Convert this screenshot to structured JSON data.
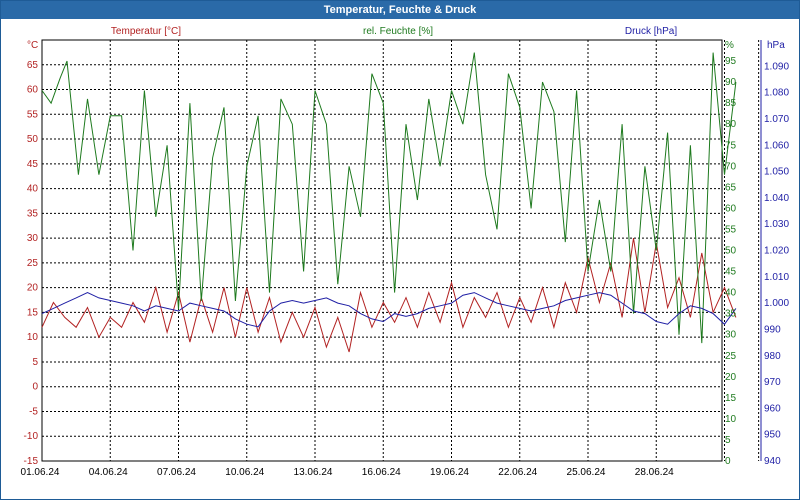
{
  "window_title": "Temperatur, Feuchte & Druck",
  "colors": {
    "temperature": "#b22222",
    "humidity": "#1e7a1e",
    "pressure": "#1f1fa5",
    "grid": "#000000",
    "titlebar": "#2a6aa8"
  },
  "chart_data": {
    "type": "line",
    "title": "Temperatur, Feuchte & Druck",
    "grid": true,
    "x_ticks": [
      "01.06.24",
      "04.06.24",
      "07.06.24",
      "10.06.24",
      "13.06.24",
      "16.06.24",
      "19.06.24",
      "22.06.24",
      "25.06.24",
      "28.06.24"
    ],
    "x_range": [
      "01.06.24",
      "02.07.24"
    ],
    "axes": {
      "left": {
        "unit": "°C",
        "range": [
          -15,
          70
        ],
        "ticks": [
          "-15",
          "-10",
          "-5",
          "0",
          "5",
          "10",
          "15",
          "20",
          "25",
          "30",
          "35",
          "40",
          "45",
          "50",
          "55",
          "60",
          "65"
        ]
      },
      "mid": {
        "unit": "%",
        "range": [
          0,
          100
        ],
        "ticks": [
          "0",
          "5",
          "10",
          "15",
          "20",
          "25",
          "30",
          "35",
          "40",
          "45",
          "50",
          "55",
          "60",
          "65",
          "70",
          "75",
          "80",
          "85",
          "90",
          "95"
        ]
      },
      "right": {
        "unit": "hPa",
        "range": [
          940,
          1100
        ],
        "ticks": [
          "940",
          "950",
          "960",
          "970",
          "980",
          "990",
          "1.000",
          "1.010",
          "1.020",
          "1.030",
          "1.040",
          "1.050",
          "1.060",
          "1.070",
          "1.080",
          "1.090"
        ]
      }
    },
    "series": [
      {
        "name": "Temperatur [°C]",
        "axis": "left",
        "day_points": [
          [
            0,
            12
          ],
          [
            0.5,
            17
          ],
          [
            1,
            14
          ],
          [
            1.5,
            12
          ],
          [
            2,
            16
          ],
          [
            2.5,
            10
          ],
          [
            3,
            14
          ],
          [
            3.5,
            12
          ],
          [
            4,
            17
          ],
          [
            4.5,
            13
          ],
          [
            5,
            20
          ],
          [
            5.5,
            11
          ],
          [
            6,
            19
          ],
          [
            6.5,
            9
          ],
          [
            7,
            18
          ],
          [
            7.5,
            11
          ],
          [
            8,
            20
          ],
          [
            8.5,
            10
          ],
          [
            9,
            20
          ],
          [
            9.5,
            11
          ],
          [
            10,
            18
          ],
          [
            10.5,
            9
          ],
          [
            11,
            15
          ],
          [
            11.5,
            10
          ],
          [
            12,
            16
          ],
          [
            12.5,
            8
          ],
          [
            13,
            14
          ],
          [
            13.5,
            7
          ],
          [
            14,
            19
          ],
          [
            14.5,
            12
          ],
          [
            15,
            17
          ],
          [
            15.5,
            13
          ],
          [
            16,
            18
          ],
          [
            16.5,
            12
          ],
          [
            17,
            19
          ],
          [
            17.5,
            13
          ],
          [
            18,
            21
          ],
          [
            18.5,
            12
          ],
          [
            19,
            18
          ],
          [
            19.5,
            14
          ],
          [
            20,
            19
          ],
          [
            20.5,
            12
          ],
          [
            21,
            18
          ],
          [
            21.5,
            13
          ],
          [
            22,
            20
          ],
          [
            22.5,
            12
          ],
          [
            23,
            21
          ],
          [
            23.5,
            15
          ],
          [
            24,
            26
          ],
          [
            24.5,
            17
          ],
          [
            25,
            25
          ],
          [
            25.5,
            14
          ],
          [
            26,
            30
          ],
          [
            26.5,
            15
          ],
          [
            27,
            29
          ],
          [
            27.5,
            16
          ],
          [
            28,
            22
          ],
          [
            28.5,
            14
          ],
          [
            29,
            27
          ],
          [
            29.5,
            15
          ],
          [
            30,
            20
          ],
          [
            30.5,
            14
          ]
        ]
      },
      {
        "name": "rel. Feuchte [%]",
        "axis": "mid",
        "day_points": [
          [
            0,
            88
          ],
          [
            0.4,
            85
          ],
          [
            0.8,
            91
          ],
          [
            1.1,
            95
          ],
          [
            1.6,
            68
          ],
          [
            2,
            86
          ],
          [
            2.5,
            68
          ],
          [
            3,
            82
          ],
          [
            3.5,
            82
          ],
          [
            4,
            50
          ],
          [
            4.5,
            88
          ],
          [
            5,
            58
          ],
          [
            5.5,
            75
          ],
          [
            6,
            36
          ],
          [
            6.5,
            85
          ],
          [
            7,
            38
          ],
          [
            7.5,
            72
          ],
          [
            8,
            84
          ],
          [
            8.5,
            38
          ],
          [
            9,
            70
          ],
          [
            9.5,
            82
          ],
          [
            10,
            40
          ],
          [
            10.5,
            86
          ],
          [
            11,
            80
          ],
          [
            11.5,
            45
          ],
          [
            12,
            88
          ],
          [
            12.5,
            80
          ],
          [
            13,
            42
          ],
          [
            13.5,
            70
          ],
          [
            14,
            58
          ],
          [
            14.5,
            92
          ],
          [
            15,
            85
          ],
          [
            15.5,
            40
          ],
          [
            16,
            80
          ],
          [
            16.5,
            62
          ],
          [
            17,
            86
          ],
          [
            17.5,
            70
          ],
          [
            18,
            88
          ],
          [
            18.5,
            80
          ],
          [
            19,
            97
          ],
          [
            19.5,
            68
          ],
          [
            20,
            55
          ],
          [
            20.5,
            92
          ],
          [
            21,
            84
          ],
          [
            21.5,
            60
          ],
          [
            22,
            90
          ],
          [
            22.5,
            83
          ],
          [
            23,
            52
          ],
          [
            23.5,
            88
          ],
          [
            24,
            45
          ],
          [
            24.5,
            62
          ],
          [
            25,
            45
          ],
          [
            25.5,
            80
          ],
          [
            26,
            35
          ],
          [
            26.5,
            70
          ],
          [
            27,
            50
          ],
          [
            27.5,
            78
          ],
          [
            28,
            30
          ],
          [
            28.5,
            75
          ],
          [
            29,
            28
          ],
          [
            29.5,
            97
          ],
          [
            30,
            68
          ],
          [
            30.5,
            90
          ]
        ]
      },
      {
        "name": "Druck [hPa]",
        "axis": "right",
        "day_points": [
          [
            0,
            996
          ],
          [
            0.5,
            998
          ],
          [
            1,
            1000
          ],
          [
            1.5,
            1002
          ],
          [
            2,
            1004
          ],
          [
            2.5,
            1002
          ],
          [
            3,
            1001
          ],
          [
            3.5,
            1000
          ],
          [
            4,
            999
          ],
          [
            4.5,
            997
          ],
          [
            5,
            999
          ],
          [
            5.5,
            998
          ],
          [
            6,
            997
          ],
          [
            6.5,
            1000
          ],
          [
            7,
            999
          ],
          [
            7.5,
            998
          ],
          [
            8,
            997
          ],
          [
            8.5,
            994
          ],
          [
            9,
            992
          ],
          [
            9.5,
            991
          ],
          [
            10,
            997
          ],
          [
            10.5,
            1000
          ],
          [
            11,
            1001
          ],
          [
            11.5,
            1000
          ],
          [
            12,
            1001
          ],
          [
            12.5,
            1002
          ],
          [
            13,
            1000
          ],
          [
            13.5,
            999
          ],
          [
            14,
            996
          ],
          [
            14.5,
            994
          ],
          [
            15,
            993
          ],
          [
            15.5,
            996
          ],
          [
            16,
            995
          ],
          [
            16.5,
            996
          ],
          [
            17,
            998
          ],
          [
            17.5,
            999
          ],
          [
            18,
            1000
          ],
          [
            18.5,
            1003
          ],
          [
            19,
            1004
          ],
          [
            19.5,
            1002
          ],
          [
            20,
            1000
          ],
          [
            20.5,
            999
          ],
          [
            21,
            998
          ],
          [
            21.5,
            997
          ],
          [
            22,
            998
          ],
          [
            22.5,
            999
          ],
          [
            23,
            1001
          ],
          [
            23.5,
            1002
          ],
          [
            24,
            1003
          ],
          [
            24.5,
            1004
          ],
          [
            25,
            1003
          ],
          [
            25.5,
            1000
          ],
          [
            26,
            997
          ],
          [
            26.5,
            996
          ],
          [
            27,
            993
          ],
          [
            27.5,
            992
          ],
          [
            28,
            996
          ],
          [
            28.5,
            999
          ],
          [
            29,
            998
          ],
          [
            29.5,
            996
          ],
          [
            30,
            992
          ],
          [
            30.5,
            998
          ]
        ]
      }
    ]
  }
}
